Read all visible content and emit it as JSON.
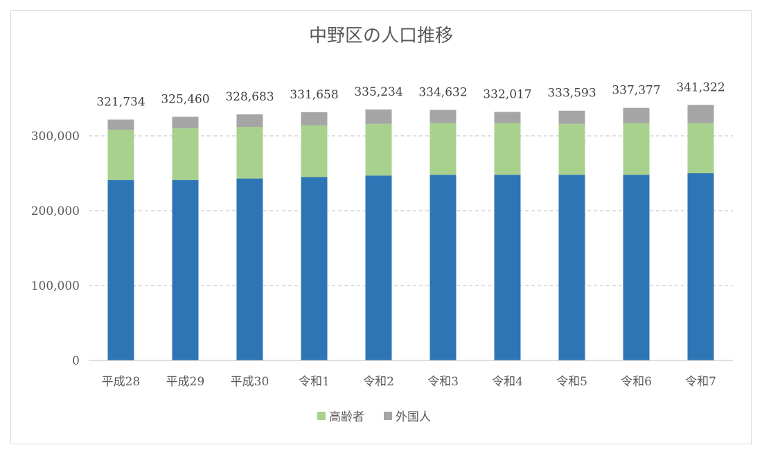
{
  "chart_data": {
    "type": "bar",
    "stacked": true,
    "title": "中野区の人口推移",
    "xlabel": "",
    "ylabel": "",
    "ylim": [
      0,
      340000
    ],
    "yticks": [
      0,
      100000,
      200000,
      300000
    ],
    "ytick_labels": [
      "0",
      "100,000",
      "200,000",
      "300,000"
    ],
    "grid": "horizontal-dashed",
    "legend_position": "bottom",
    "categories": [
      "平成28",
      "平成29",
      "平成30",
      "令和1",
      "令和2",
      "令和3",
      "令和4",
      "令和5",
      "令和6",
      "令和7"
    ],
    "totals": [
      321734,
      325460,
      328683,
      331658,
      335234,
      334632,
      332017,
      333593,
      337377,
      341322
    ],
    "total_labels": [
      "321,734",
      "325,460",
      "328,683",
      "331,658",
      "335,234",
      "334,632",
      "332,017",
      "333,593",
      "337,377",
      "341,322"
    ],
    "series": [
      {
        "values": [
          241000,
          241000,
          243000,
          245000,
          247000,
          248000,
          248000,
          248000,
          248000,
          250000
        ],
        "color": "#2e75b6"
      },
      {
        "name": "高齢者",
        "values": [
          67000,
          69000,
          69000,
          69000,
          69000,
          69000,
          69000,
          68000,
          69000,
          67000
        ],
        "color": "#a9d18e"
      },
      {
        "name": "外国人",
        "values": [
          13734,
          15460,
          16683,
          17658,
          19234,
          17632,
          15017,
          17593,
          20377,
          24322
        ],
        "color": "#a5a5a5"
      }
    ]
  }
}
